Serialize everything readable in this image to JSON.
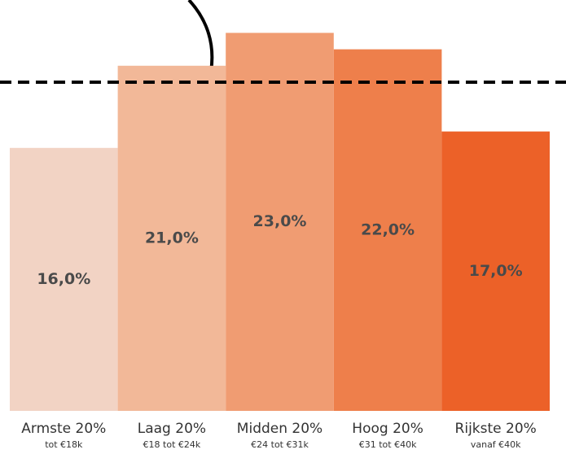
{
  "chart_data": {
    "type": "bar",
    "categories": [
      "Armste 20%",
      "Laag 20%",
      "Midden 20%",
      "Hoog 20%",
      "Rijkste 20%"
    ],
    "category_notes": [
      "tot €18k",
      "€18 tot €24k",
      "€24 tot €31k",
      "€31 tot €40k",
      "vanaf €40k"
    ],
    "values": [
      16,
      21,
      23,
      22,
      17
    ],
    "value_labels": [
      "16,0%",
      "21,0%",
      "23,0%",
      "22,0%",
      "17,0%"
    ],
    "colors": [
      "#f2d3c4",
      "#f2b898",
      "#f09c72",
      "#ee7f4b",
      "#ec6128"
    ],
    "reference_value": 20,
    "ylim": [
      0,
      25
    ]
  }
}
